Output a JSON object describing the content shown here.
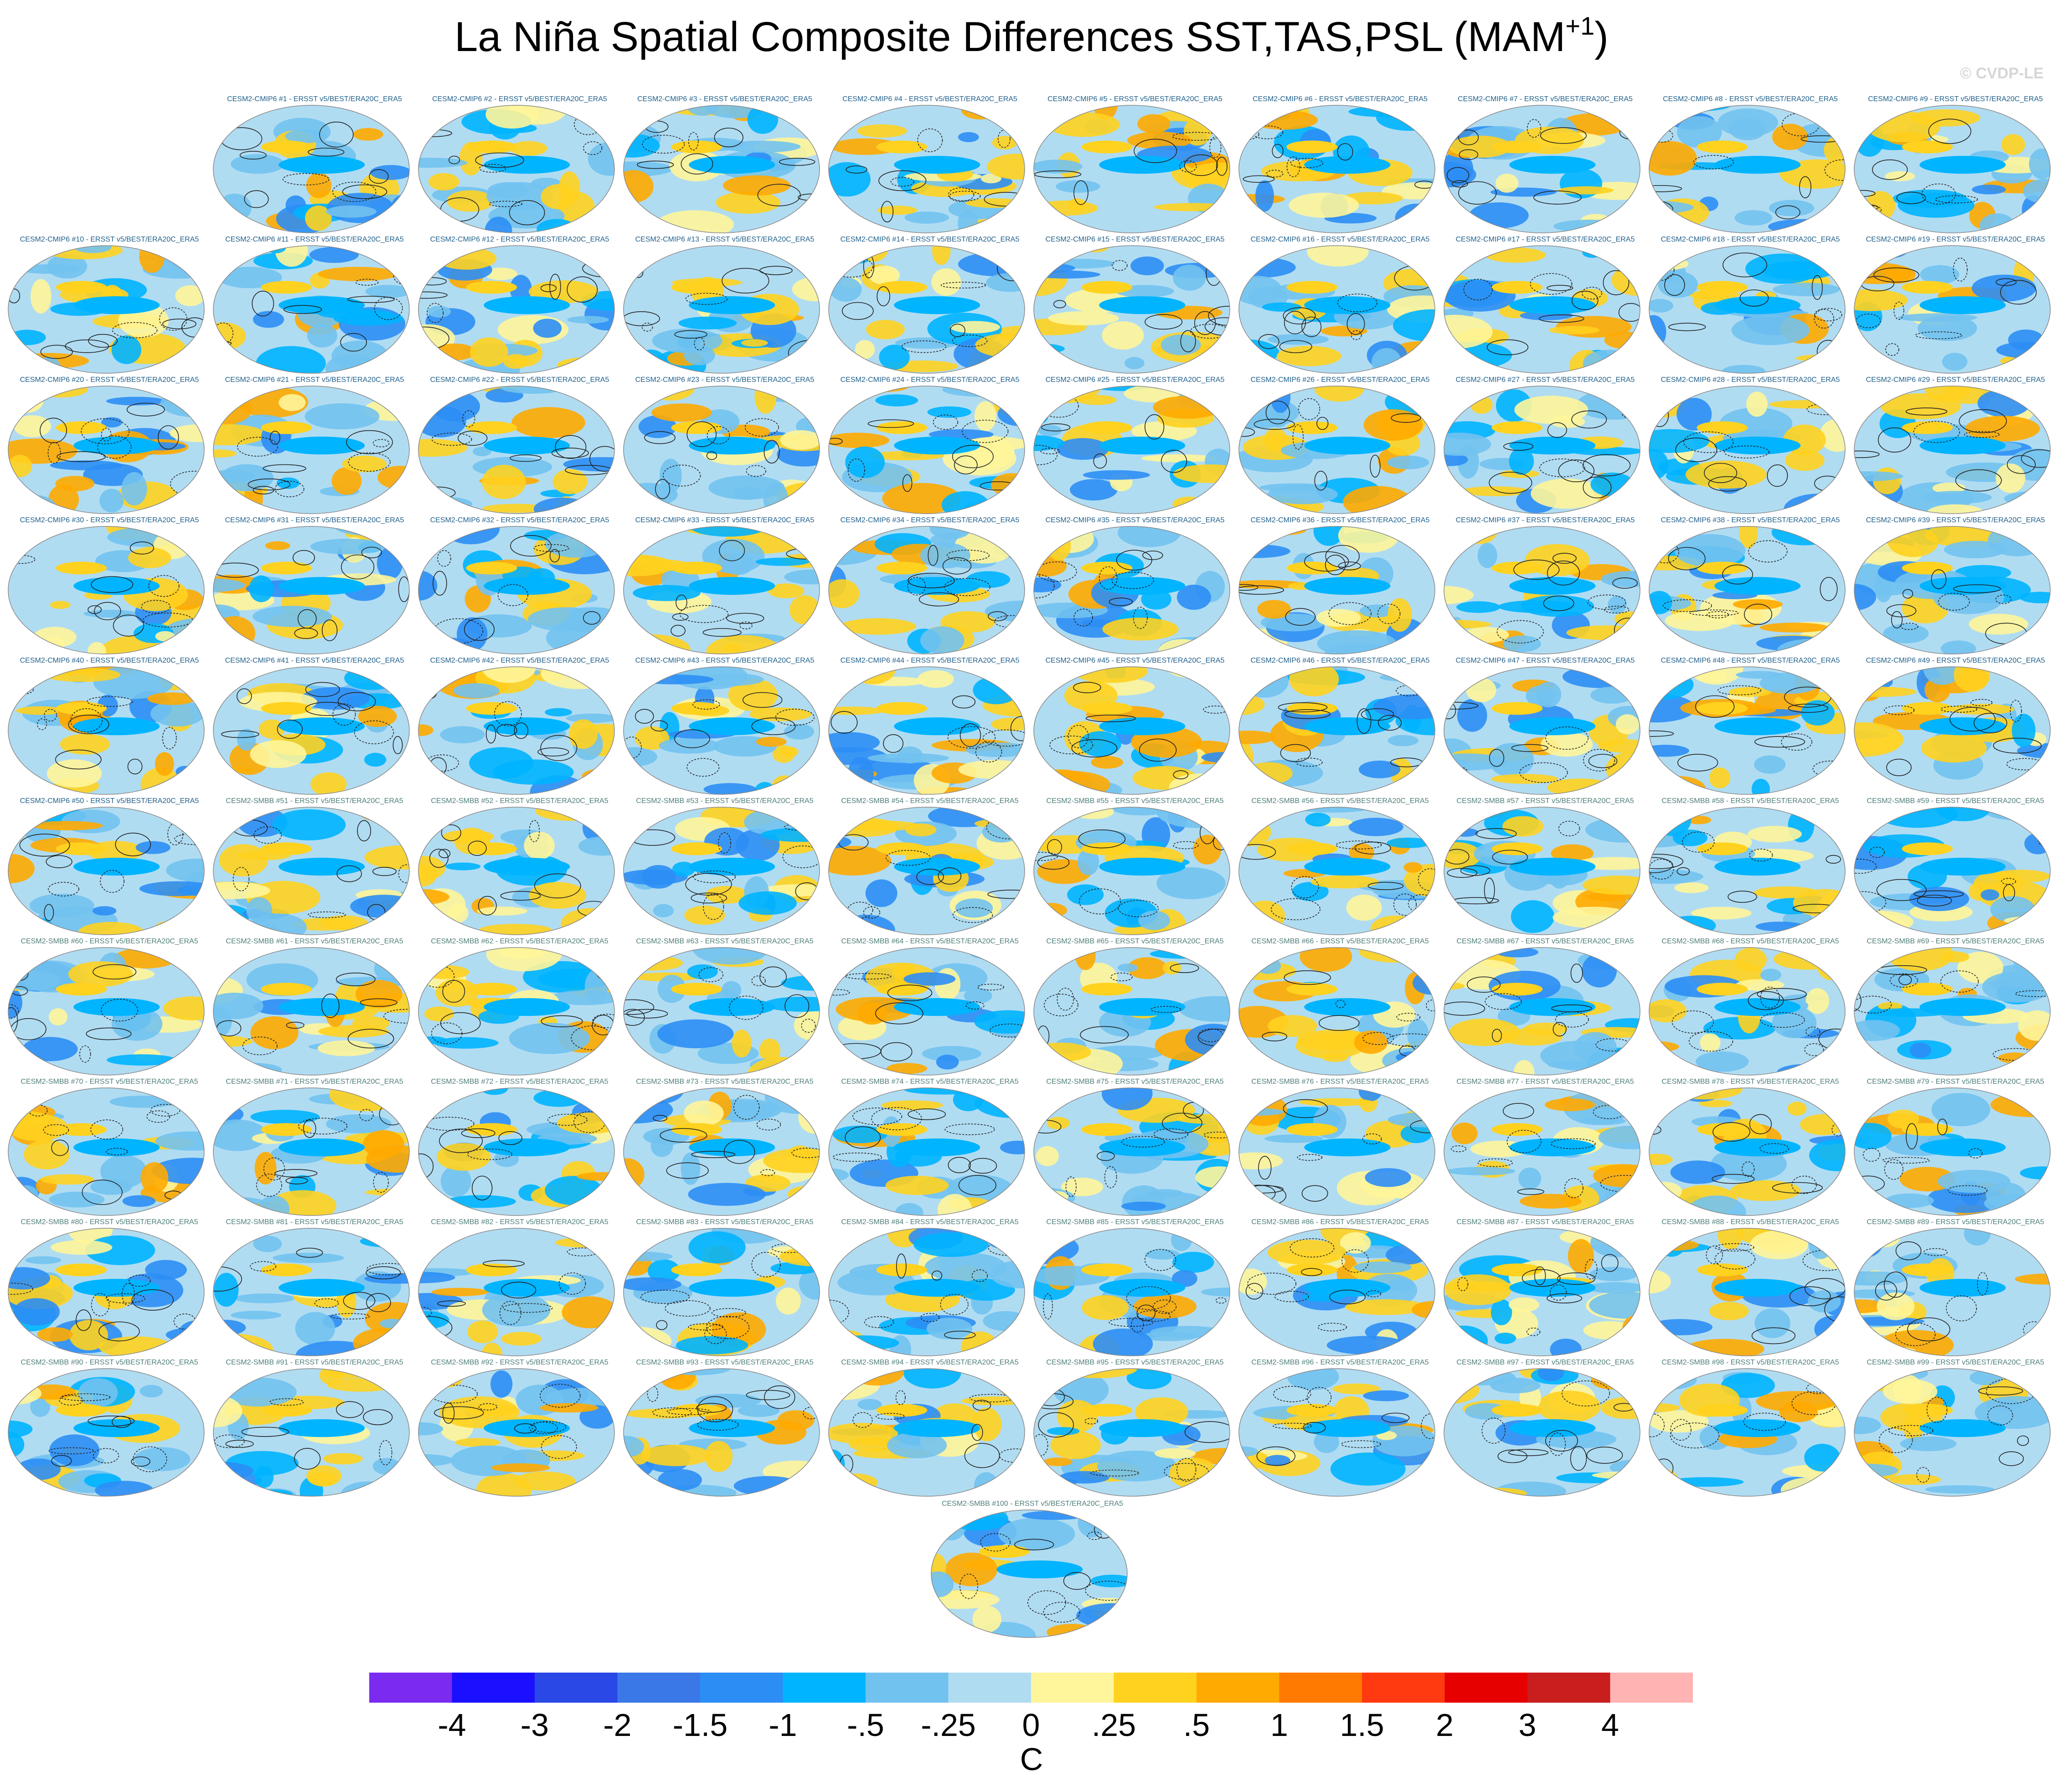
{
  "page": {
    "title": "La Niña Spatial Composite Differences SST,TAS,PSL (MAM",
    "title_superscript": "+1",
    "title_close": ")",
    "watermark": "© CVDP-LE"
  },
  "chart_data": {
    "type": "heatmap",
    "title": "La Niña Spatial Composite Differences SST,TAS,PSL (MAM+1)",
    "projection": "robinson",
    "fields": [
      "SST",
      "TAS",
      "PSL"
    ],
    "season": "MAM+1",
    "panel_count": 100,
    "panel_label_suffix": " - ERSST v5/BEST/ERA20C_ERA5",
    "panels": [
      {
        "model": "CESM2-CMIP6",
        "member": "#1"
      },
      {
        "model": "CESM2-CMIP6",
        "member": "#2"
      },
      {
        "model": "CESM2-CMIP6",
        "member": "#3"
      },
      {
        "model": "CESM2-CMIP6",
        "member": "#4"
      },
      {
        "model": "CESM2-CMIP6",
        "member": "#5"
      },
      {
        "model": "CESM2-CMIP6",
        "member": "#6"
      },
      {
        "model": "CESM2-CMIP6",
        "member": "#7"
      },
      {
        "model": "CESM2-CMIP6",
        "member": "#8"
      },
      {
        "model": "CESM2-CMIP6",
        "member": "#9"
      },
      {
        "model": "CESM2-CMIP6",
        "member": "#10"
      },
      {
        "model": "CESM2-CMIP6",
        "member": "#11"
      },
      {
        "model": "CESM2-CMIP6",
        "member": "#12"
      },
      {
        "model": "CESM2-CMIP6",
        "member": "#13"
      },
      {
        "model": "CESM2-CMIP6",
        "member": "#14"
      },
      {
        "model": "CESM2-CMIP6",
        "member": "#15"
      },
      {
        "model": "CESM2-CMIP6",
        "member": "#16"
      },
      {
        "model": "CESM2-CMIP6",
        "member": "#17"
      },
      {
        "model": "CESM2-CMIP6",
        "member": "#18"
      },
      {
        "model": "CESM2-CMIP6",
        "member": "#19"
      },
      {
        "model": "CESM2-CMIP6",
        "member": "#20"
      },
      {
        "model": "CESM2-CMIP6",
        "member": "#21"
      },
      {
        "model": "CESM2-CMIP6",
        "member": "#22"
      },
      {
        "model": "CESM2-CMIP6",
        "member": "#23"
      },
      {
        "model": "CESM2-CMIP6",
        "member": "#24"
      },
      {
        "model": "CESM2-CMIP6",
        "member": "#25"
      },
      {
        "model": "CESM2-CMIP6",
        "member": "#26"
      },
      {
        "model": "CESM2-CMIP6",
        "member": "#27"
      },
      {
        "model": "CESM2-CMIP6",
        "member": "#28"
      },
      {
        "model": "CESM2-CMIP6",
        "member": "#29"
      },
      {
        "model": "CESM2-CMIP6",
        "member": "#30"
      },
      {
        "model": "CESM2-CMIP6",
        "member": "#31"
      },
      {
        "model": "CESM2-CMIP6",
        "member": "#32"
      },
      {
        "model": "CESM2-CMIP6",
        "member": "#33"
      },
      {
        "model": "CESM2-CMIP6",
        "member": "#34"
      },
      {
        "model": "CESM2-CMIP6",
        "member": "#35"
      },
      {
        "model": "CESM2-CMIP6",
        "member": "#36"
      },
      {
        "model": "CESM2-CMIP6",
        "member": "#37"
      },
      {
        "model": "CESM2-CMIP6",
        "member": "#38"
      },
      {
        "model": "CESM2-CMIP6",
        "member": "#39"
      },
      {
        "model": "CESM2-CMIP6",
        "member": "#40"
      },
      {
        "model": "CESM2-CMIP6",
        "member": "#41"
      },
      {
        "model": "CESM2-CMIP6",
        "member": "#42"
      },
      {
        "model": "CESM2-CMIP6",
        "member": "#43"
      },
      {
        "model": "CESM2-CMIP6",
        "member": "#44"
      },
      {
        "model": "CESM2-CMIP6",
        "member": "#45"
      },
      {
        "model": "CESM2-CMIP6",
        "member": "#46"
      },
      {
        "model": "CESM2-CMIP6",
        "member": "#47"
      },
      {
        "model": "CESM2-CMIP6",
        "member": "#48"
      },
      {
        "model": "CESM2-CMIP6",
        "member": "#49"
      },
      {
        "model": "CESM2-CMIP6",
        "member": "#50"
      },
      {
        "model": "CESM2-SMBB",
        "member": "#51"
      },
      {
        "model": "CESM2-SMBB",
        "member": "#52"
      },
      {
        "model": "CESM2-SMBB",
        "member": "#53"
      },
      {
        "model": "CESM2-SMBB",
        "member": "#54"
      },
      {
        "model": "CESM2-SMBB",
        "member": "#55"
      },
      {
        "model": "CESM2-SMBB",
        "member": "#56"
      },
      {
        "model": "CESM2-SMBB",
        "member": "#57"
      },
      {
        "model": "CESM2-SMBB",
        "member": "#58"
      },
      {
        "model": "CESM2-SMBB",
        "member": "#59"
      },
      {
        "model": "CESM2-SMBB",
        "member": "#60"
      },
      {
        "model": "CESM2-SMBB",
        "member": "#61"
      },
      {
        "model": "CESM2-SMBB",
        "member": "#62"
      },
      {
        "model": "CESM2-SMBB",
        "member": "#63"
      },
      {
        "model": "CESM2-SMBB",
        "member": "#64"
      },
      {
        "model": "CESM2-SMBB",
        "member": "#65"
      },
      {
        "model": "CESM2-SMBB",
        "member": "#66"
      },
      {
        "model": "CESM2-SMBB",
        "member": "#67"
      },
      {
        "model": "CESM2-SMBB",
        "member": "#68"
      },
      {
        "model": "CESM2-SMBB",
        "member": "#69"
      },
      {
        "model": "CESM2-SMBB",
        "member": "#70"
      },
      {
        "model": "CESM2-SMBB",
        "member": "#71"
      },
      {
        "model": "CESM2-SMBB",
        "member": "#72"
      },
      {
        "model": "CESM2-SMBB",
        "member": "#73"
      },
      {
        "model": "CESM2-SMBB",
        "member": "#74"
      },
      {
        "model": "CESM2-SMBB",
        "member": "#75"
      },
      {
        "model": "CESM2-SMBB",
        "member": "#76"
      },
      {
        "model": "CESM2-SMBB",
        "member": "#77"
      },
      {
        "model": "CESM2-SMBB",
        "member": "#78"
      },
      {
        "model": "CESM2-SMBB",
        "member": "#79"
      },
      {
        "model": "CESM2-SMBB",
        "member": "#80"
      },
      {
        "model": "CESM2-SMBB",
        "member": "#81"
      },
      {
        "model": "CESM2-SMBB",
        "member": "#82"
      },
      {
        "model": "CESM2-SMBB",
        "member": "#83"
      },
      {
        "model": "CESM2-SMBB",
        "member": "#84"
      },
      {
        "model": "CESM2-SMBB",
        "member": "#85"
      },
      {
        "model": "CESM2-SMBB",
        "member": "#86"
      },
      {
        "model": "CESM2-SMBB",
        "member": "#87"
      },
      {
        "model": "CESM2-SMBB",
        "member": "#88"
      },
      {
        "model": "CESM2-SMBB",
        "member": "#89"
      },
      {
        "model": "CESM2-SMBB",
        "member": "#90"
      },
      {
        "model": "CESM2-SMBB",
        "member": "#91"
      },
      {
        "model": "CESM2-SMBB",
        "member": "#92"
      },
      {
        "model": "CESM2-SMBB",
        "member": "#93"
      },
      {
        "model": "CESM2-SMBB",
        "member": "#94"
      },
      {
        "model": "CESM2-SMBB",
        "member": "#95"
      },
      {
        "model": "CESM2-SMBB",
        "member": "#96"
      },
      {
        "model": "CESM2-SMBB",
        "member": "#97"
      },
      {
        "model": "CESM2-SMBB",
        "member": "#98"
      },
      {
        "model": "CESM2-SMBB",
        "member": "#99"
      },
      {
        "model": "CESM2-SMBB",
        "member": "#100"
      }
    ],
    "model_label_colors": {
      "CESM2-CMIP6": "#1f5f8b",
      "CESM2-SMBB": "#4f7f7a"
    },
    "colorbar": {
      "levels": [
        "-4",
        "-3",
        "-2",
        "-1.5",
        "-1",
        "-.5",
        "-.25",
        "0",
        ".25",
        ".5",
        "1",
        "1.5",
        "2",
        "3",
        "4"
      ],
      "colors": [
        "#7b2bf0",
        "#1a10ff",
        "#2a48e6",
        "#3a78e8",
        "#2c8ef5",
        "#00b4ff",
        "#72c2f0",
        "#b0dcf2",
        "#fff59a",
        "#ffd21f",
        "#ffaa00",
        "#ff7a00",
        "#ff3a10",
        "#e60000",
        "#c81e1e",
        "#ffb3b3"
      ],
      "unit": "C"
    }
  }
}
